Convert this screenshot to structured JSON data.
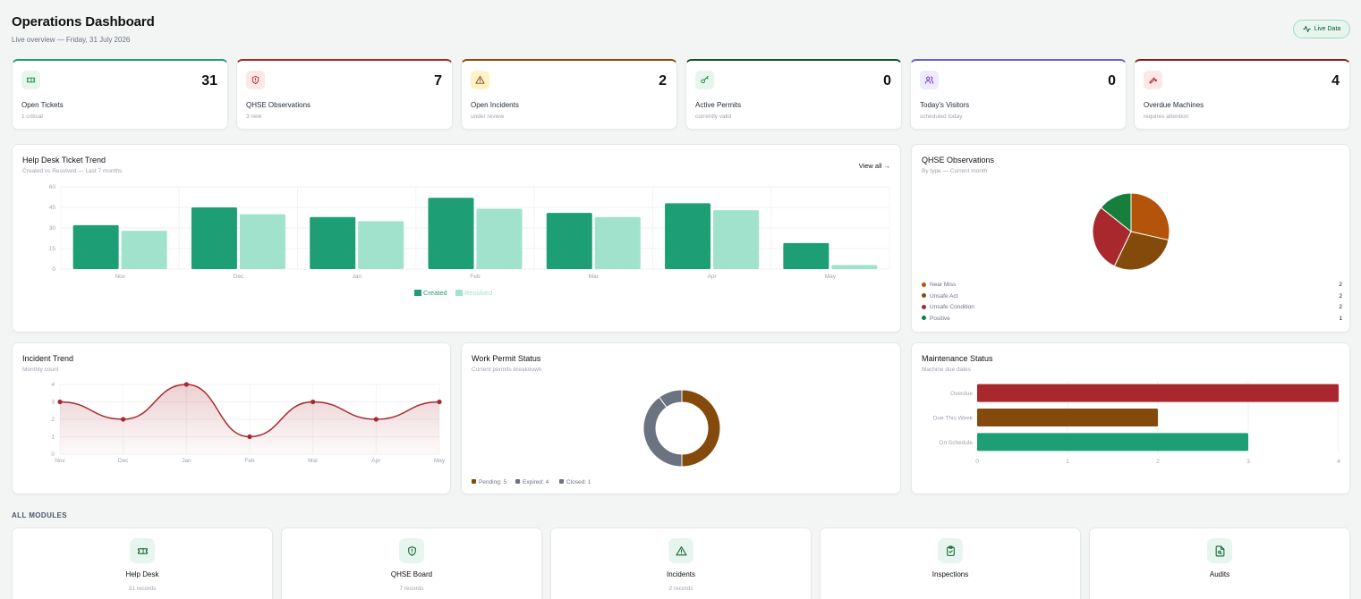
{
  "header": {
    "title": "Operations Dashboard",
    "subtitle": "Live overview — Friday, 31 July 2026",
    "live_label": "Live Data"
  },
  "stats": [
    {
      "label": "Open Tickets",
      "value": "31",
      "sub": "1 critical",
      "icon": "ticket-icon",
      "accent": "#1e9e74",
      "icon_bg": "#e6f6ef",
      "icon_color": "#15803d"
    },
    {
      "label": "QHSE Observations",
      "value": "7",
      "sub": "3 new",
      "icon": "shield-icon",
      "accent": "#a52a2a",
      "icon_bg": "#fde8e8",
      "icon_color": "#b91c1c"
    },
    {
      "label": "Open Incidents",
      "value": "2",
      "sub": "under review",
      "icon": "warning-icon",
      "accent": "#8b4b0b",
      "icon_bg": "#fef3c7",
      "icon_color": "#92400e"
    },
    {
      "label": "Active Permits",
      "value": "0",
      "sub": "currently valid",
      "icon": "key-icon",
      "accent": "#0f5132",
      "icon_bg": "#e6f6ef",
      "icon_color": "#15803d"
    },
    {
      "label": "Today's Visitors",
      "value": "0",
      "sub": "scheduled today",
      "icon": "users-icon",
      "accent": "#6d5bd0",
      "icon_bg": "#ede9fe",
      "icon_color": "#6d28d9"
    },
    {
      "label": "Overdue Machines",
      "value": "4",
      "sub": "requires attention",
      "icon": "wrench-icon",
      "accent": "#8b1c1c",
      "icon_bg": "#fde8e8",
      "icon_color": "#b91c1c"
    }
  ],
  "helpdesk": {
    "title": "Help Desk Ticket Trend",
    "subtitle": "Created vs Resolved — Last 7 months",
    "view_all": "View all →"
  },
  "qhse": {
    "title": "QHSE Observations",
    "subtitle": "By type — Current month"
  },
  "incident": {
    "title": "Incident Trend",
    "subtitle": "Monthly count"
  },
  "permit": {
    "title": "Work Permit Status",
    "subtitle": "Current permits breakdown"
  },
  "maintenance": {
    "title": "Maintenance Status",
    "subtitle": "Machine due dates"
  },
  "chart_data": [
    {
      "type": "bar",
      "categories": [
        "Nov",
        "Dec",
        "Jan",
        "Feb",
        "Mar",
        "Apr",
        "May"
      ],
      "series": [
        {
          "name": "Created",
          "values": [
            32,
            45,
            38,
            52,
            41,
            48,
            19
          ],
          "color": "#1e9e74"
        },
        {
          "name": "Resolved",
          "values": [
            28,
            40,
            35,
            44,
            38,
            43,
            3
          ],
          "color": "#a0e2cb"
        }
      ],
      "ylim": [
        0,
        60
      ],
      "yticks": [
        "0",
        "15",
        "30",
        "45",
        "60"
      ],
      "grid": true,
      "legend": "bottom-center"
    },
    {
      "type": "pie",
      "labels": [
        "Near Miss",
        "Unsafe Act",
        "Unsafe Condition",
        "Positive"
      ],
      "values": [
        2,
        2,
        2,
        1
      ],
      "colors": [
        "#b4540a",
        "#844a0c",
        "#a8282e",
        "#157f3b"
      ],
      "legend": "bottom"
    },
    {
      "type": "area",
      "categories": [
        "Nov",
        "Dec",
        "Jan",
        "Feb",
        "Mar",
        "Apr",
        "May"
      ],
      "values": [
        3,
        2,
        4,
        1,
        3,
        2,
        3
      ],
      "ylim": [
        0,
        4
      ],
      "yticks": [
        "0",
        "1",
        "2",
        "3",
        "4"
      ],
      "color": "#a8282e",
      "grid": true
    },
    {
      "type": "pie",
      "variant": "donut",
      "labels": [
        "Pending",
        "Expired",
        "Closed"
      ],
      "values": [
        5,
        4,
        1
      ],
      "legend_texts": [
        "Pending: 5",
        "Expired: 4",
        "Closed: 1"
      ],
      "colors": [
        "#844a0c",
        "#6b7280",
        "#6b7280"
      ],
      "legend": "bottom-left"
    },
    {
      "type": "bar",
      "orientation": "horizontal",
      "categories": [
        "Overdue",
        "Due This Week",
        "On Schedule"
      ],
      "values": [
        4,
        2,
        3
      ],
      "colors": [
        "#a8282e",
        "#844a0c",
        "#1e9e74"
      ],
      "xlim": [
        0,
        4
      ],
      "xticks": [
        "0",
        "1",
        "2",
        "3",
        "4"
      ],
      "grid": true
    }
  ],
  "modules": {
    "title": "ALL MODULES",
    "items": [
      {
        "name": "Help Desk",
        "count": "31 records",
        "icon": "ticket-icon"
      },
      {
        "name": "QHSE Board",
        "count": "7 records",
        "icon": "shield-icon"
      },
      {
        "name": "Incidents",
        "count": "2 records",
        "icon": "warning-icon"
      },
      {
        "name": "Inspections",
        "count": "",
        "icon": "clipboard-check-icon"
      },
      {
        "name": "Audits",
        "count": "",
        "icon": "file-search-icon"
      }
    ]
  }
}
